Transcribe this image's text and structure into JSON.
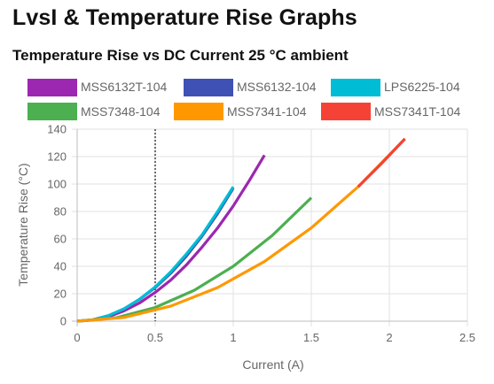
{
  "page": {
    "title": "LvsI & Temperature Rise Graphs"
  },
  "chart_data": {
    "type": "line",
    "title": "Temperature Rise vs DC Current 25 °C ambient",
    "xlabel": "Current (A)",
    "ylabel": "Temperature Rise (°C)",
    "xlim": [
      0,
      2.5
    ],
    "ylim": [
      0,
      140
    ],
    "xticks": [
      "0",
      "0.5",
      "1",
      "1.5",
      "2",
      "2.5"
    ],
    "yticks": [
      "0",
      "20",
      "40",
      "60",
      "80",
      "100",
      "120",
      "140"
    ],
    "grid": true,
    "legend_position": "top",
    "reference_line": {
      "x": 0.5,
      "style": "dotted"
    },
    "series": [
      {
        "name": "MSS6132T-104",
        "color": "#9C27B0",
        "x": [
          0,
          0.1,
          0.2,
          0.3,
          0.4,
          0.5,
          0.6,
          0.7,
          0.8,
          0.9,
          1.0,
          1.1,
          1.2
        ],
        "y": [
          0,
          0.8,
          3.3,
          7.5,
          13.3,
          21,
          30,
          41,
          54,
          68,
          84,
          102,
          121
        ]
      },
      {
        "name": "MSS6132-104",
        "color": "#3F51B5",
        "x": [
          0,
          0.1,
          0.2,
          0.3,
          0.4,
          0.5,
          0.6,
          0.7,
          0.8,
          0.9,
          1.0
        ],
        "y": [
          0,
          1,
          4,
          9,
          16,
          24.5,
          35,
          47.5,
          62,
          78.5,
          97
        ]
      },
      {
        "name": "LPS6225-104",
        "color": "#00BCD4",
        "x": [
          0,
          0.1,
          0.2,
          0.3,
          0.4,
          0.5,
          0.6,
          0.7,
          0.8,
          0.9,
          1.0
        ],
        "y": [
          0,
          1,
          4,
          9,
          16,
          25,
          36,
          49,
          63,
          80,
          98
        ]
      },
      {
        "name": "MSS7348-104",
        "color": "#4CAF50",
        "x": [
          0,
          0.25,
          0.5,
          0.75,
          1.0,
          1.25,
          1.5
        ],
        "y": [
          0,
          2.5,
          10,
          22.5,
          40,
          62.5,
          90
        ]
      },
      {
        "name": "MSS7341-104",
        "color": "#FF9800",
        "x": [
          0,
          0.3,
          0.6,
          0.9,
          1.2,
          1.5,
          1.8,
          2.1
        ],
        "y": [
          0,
          2.7,
          11,
          24.5,
          43.5,
          68,
          98,
          133
        ]
      },
      {
        "name": "MSS7341T-104",
        "color": "#F44336",
        "x": [
          1.8,
          1.95,
          2.1
        ],
        "y": [
          98,
          115,
          133
        ]
      }
    ]
  }
}
